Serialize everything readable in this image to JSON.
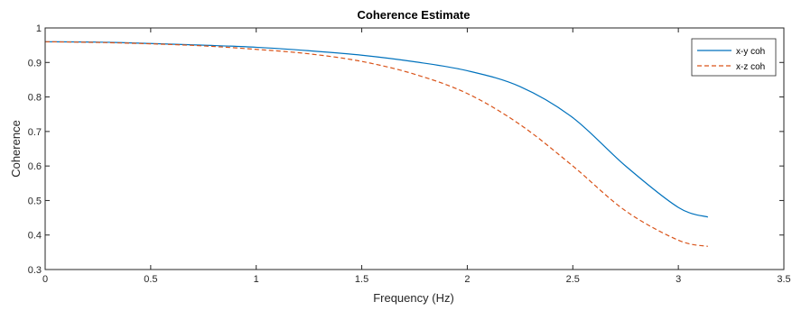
{
  "chart_data": {
    "type": "line",
    "title": "Coherence Estimate",
    "xlabel": "Frequency (Hz)",
    "ylabel": "Coherence",
    "xlim": [
      0,
      3.5
    ],
    "ylim": [
      0.3,
      1
    ],
    "xticks": [
      0,
      0.5,
      1,
      1.5,
      2,
      2.5,
      3,
      3.5
    ],
    "xtick_labels": [
      "0",
      "0.5",
      "1",
      "1.5",
      "2",
      "2.5",
      "3",
      "3.5"
    ],
    "yticks": [
      0.3,
      0.4,
      0.5,
      0.6,
      0.7,
      0.8,
      0.9,
      1
    ],
    "ytick_labels": [
      "0.3",
      "0.4",
      "0.5",
      "0.6",
      "0.7",
      "0.8",
      "0.9",
      "1"
    ],
    "grid": false,
    "legend_position": "top-right",
    "series": [
      {
        "name": "x-y coh",
        "color": "#0072BD",
        "style": "solid",
        "x": [
          0,
          0.25,
          0.5,
          0.75,
          1.0,
          1.25,
          1.5,
          1.75,
          2.0,
          2.25,
          2.5,
          2.75,
          3.0,
          3.14
        ],
        "y": [
          0.96,
          0.959,
          0.955,
          0.95,
          0.944,
          0.934,
          0.921,
          0.902,
          0.876,
          0.83,
          0.74,
          0.6,
          0.48,
          0.452
        ]
      },
      {
        "name": "x-z coh",
        "color": "#D95319",
        "style": "dashed",
        "x": [
          0,
          0.25,
          0.5,
          0.75,
          1.0,
          1.25,
          1.5,
          1.75,
          2.0,
          2.25,
          2.5,
          2.75,
          3.0,
          3.14
        ],
        "y": [
          0.96,
          0.958,
          0.954,
          0.948,
          0.938,
          0.925,
          0.903,
          0.866,
          0.81,
          0.72,
          0.6,
          0.47,
          0.385,
          0.367
        ]
      }
    ]
  }
}
